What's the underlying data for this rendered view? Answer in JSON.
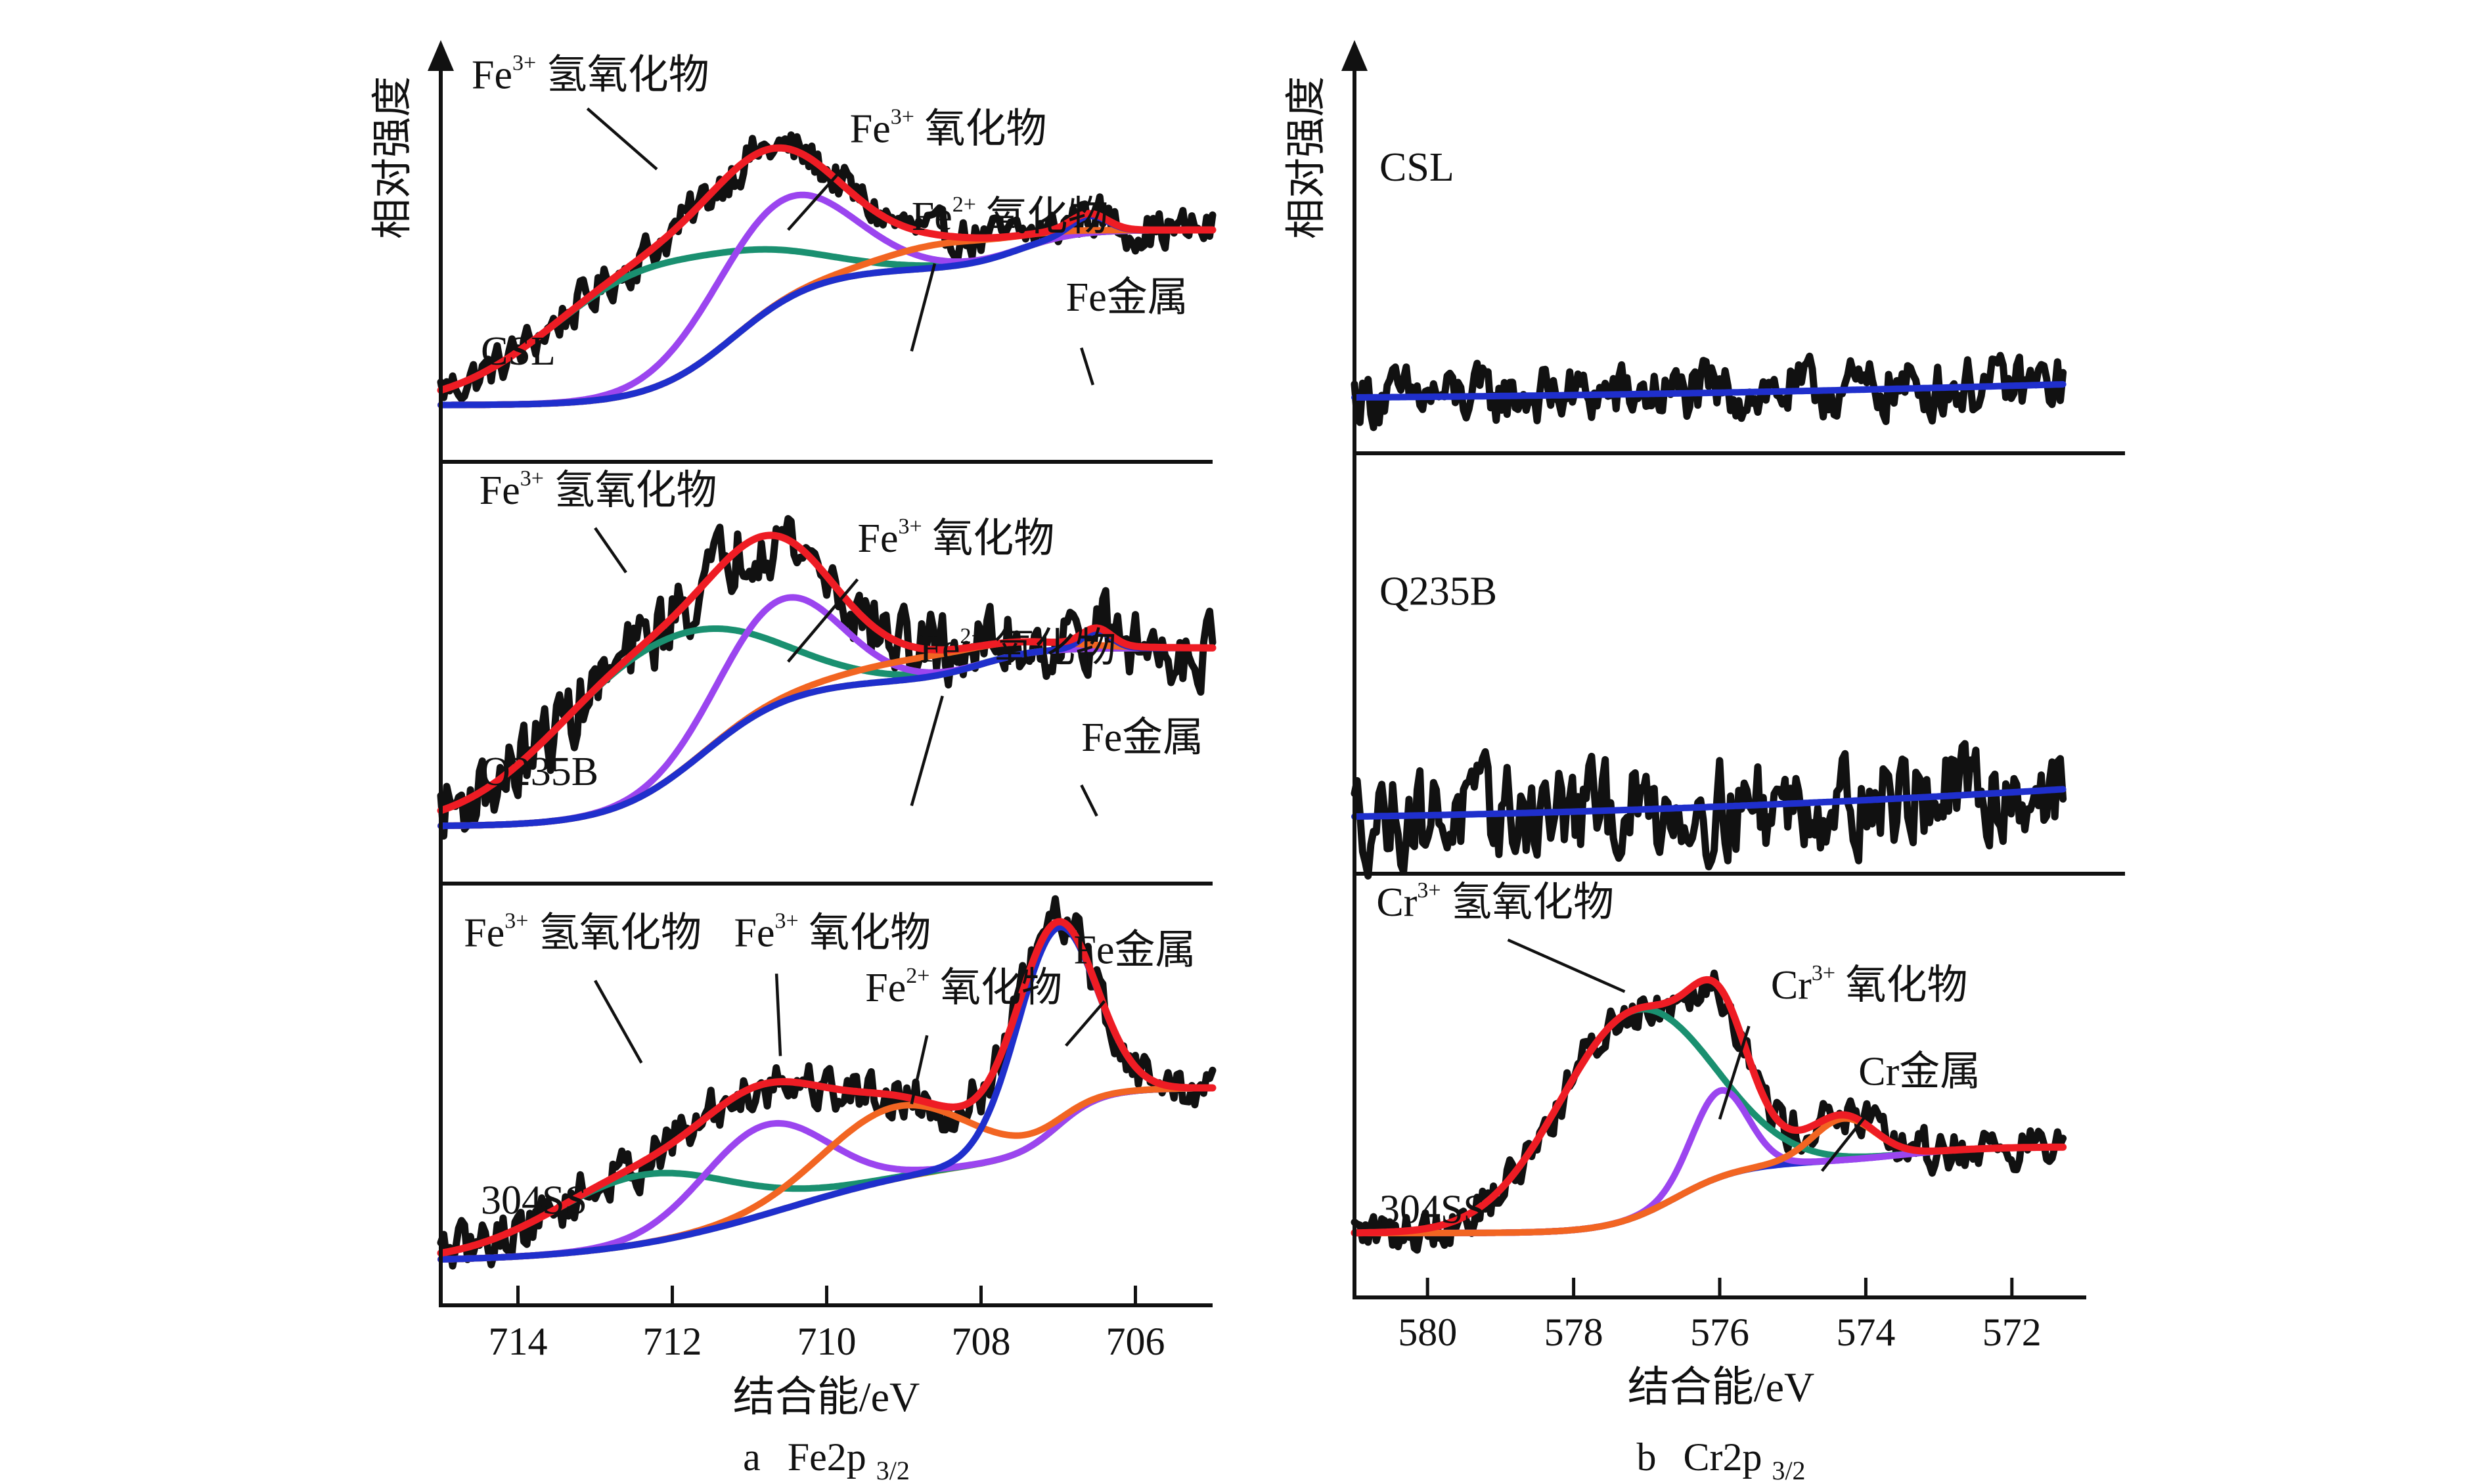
{
  "figure": {
    "y_axis_label": "相对强度",
    "x_axis_label": "结合能/eV"
  },
  "colors": {
    "raw": "#111111",
    "envelope": "#ee1c24",
    "hydroxide": "#1a9070",
    "oxide3": "#9b45ef",
    "oxide2": "#f26522",
    "metal": "#1f2fcc",
    "background": "#cc9010"
  },
  "chart_data": [
    {
      "id": "fe",
      "type": "line",
      "title": "",
      "caption": {
        "prefix": "a",
        "main": "Fe2p",
        "sub": "3/2"
      },
      "xlabel": "结合能/eV",
      "ylabel": "相对强度",
      "xlim": [
        715,
        705
      ],
      "xticks": [
        714,
        712,
        710,
        708,
        706
      ],
      "ylim": [
        0,
        1
      ],
      "grid": false,
      "panels": [
        {
          "sample": "CSL",
          "background": {
            "start": 0.62,
            "end": 0.1,
            "steps": [
              {
                "center": 711.2,
                "width": 1.2,
                "frac": 0.78
              },
              {
                "center": 707.5,
                "width": 0.8,
                "frac": 0.22
              }
            ]
          },
          "components": [
            {
              "name": "Fe³⁺ 氢氧化物",
              "key": "hydroxide",
              "center": 712.3,
              "fwhm": 3.1,
              "height": 0.36
            },
            {
              "name": "Fe³⁺ 氧化物",
              "key": "oxide3",
              "center": 710.6,
              "fwhm": 2.1,
              "height": 0.3
            },
            {
              "name": "Fe²⁺ 氧化物",
              "key": "oxide2",
              "center": 708.4,
              "fwhm": 2.0,
              "height": 0.07
            },
            {
              "name": "Fe金属",
              "key": "metal",
              "center": 706.6,
              "fwhm": 0.55,
              "height": 0.05
            }
          ],
          "noise": 0.035,
          "labels": [
            {
              "main": "Fe",
              "sup": "3+",
              "rest": " 氢氧化物",
              "x": 714.6,
              "y": 1.04,
              "line": [
                713.1,
                0.98,
                712.2,
                0.8
              ]
            },
            {
              "main": "Fe",
              "sup": "3+",
              "rest": " 氧化物",
              "x": 709.7,
              "y": 0.88,
              "line": [
                709.8,
                0.8,
                710.5,
                0.62
              ]
            },
            {
              "main": "Fe",
              "sup": "2+",
              "rest": " 氧化物",
              "x": 708.9,
              "y": 0.62,
              "line": [
                708.6,
                0.52,
                708.9,
                0.26
              ]
            },
            {
              "main": "Fe",
              "rest": "金属",
              "x": 706.9,
              "y": 0.38,
              "line": [
                706.7,
                0.27,
                706.55,
                0.16
              ]
            }
          ]
        },
        {
          "sample": "Q235B",
          "background": {
            "start": 0.62,
            "end": 0.1,
            "steps": [
              {
                "center": 711.6,
                "width": 1.3,
                "frac": 0.82
              },
              {
                "center": 708.0,
                "width": 0.8,
                "frac": 0.18
              }
            ]
          },
          "components": [
            {
              "name": "Fe³⁺ 氢氧化物",
              "key": "hydroxide",
              "center": 712.3,
              "fwhm": 3.0,
              "height": 0.42
            },
            {
              "name": "Fe³⁺ 氧化物",
              "key": "oxide3",
              "center": 710.6,
              "fwhm": 1.8,
              "height": 0.3
            },
            {
              "name": "Fe²⁺ 氧化物",
              "key": "oxide2",
              "center": 708.6,
              "fwhm": 2.6,
              "height": 0.06
            },
            {
              "name": "Fe金属",
              "key": "metal",
              "center": 706.5,
              "fwhm": 0.45,
              "height": 0.05
            }
          ],
          "noise": 0.06,
          "labels": [
            {
              "main": "Fe",
              "sup": "3+",
              "rest": " 氢氧化物",
              "x": 714.5,
              "y": 1.04,
              "line": [
                713.0,
                0.97,
                712.6,
                0.84
              ]
            },
            {
              "main": "Fe",
              "sup": "3+",
              "rest": " 氧化物",
              "x": 709.6,
              "y": 0.9,
              "line": [
                709.6,
                0.82,
                710.5,
                0.58
              ]
            },
            {
              "main": "Fe",
              "sup": "2+",
              "rest": " 氧化物",
              "x": 708.8,
              "y": 0.58,
              "line": [
                708.5,
                0.48,
                708.9,
                0.16
              ]
            },
            {
              "main": "Fe",
              "rest": "金属",
              "x": 706.7,
              "y": 0.32,
              "line": [
                706.7,
                0.22,
                706.5,
                0.13
              ]
            }
          ]
        },
        {
          "sample": "304SS",
          "background": {
            "start": 0.57,
            "end": 0.06,
            "steps": [
              {
                "center": 710.5,
                "width": 2.6,
                "frac": 0.62
              },
              {
                "center": 707.0,
                "width": 0.6,
                "frac": 0.38
              }
            ]
          },
          "components": [
            {
              "name": "Fe³⁺ 氢氧化物",
              "key": "hydroxide",
              "center": 712.4,
              "fwhm": 2.8,
              "height": 0.2
            },
            {
              "name": "Fe³⁺ 氧化物",
              "key": "oxide3",
              "center": 710.8,
              "fwhm": 1.9,
              "height": 0.26
            },
            {
              "name": "Fe²⁺ 氧化物",
              "key": "oxide2",
              "center": 709.1,
              "fwhm": 2.2,
              "height": 0.21
            },
            {
              "name": "Fe金属",
              "key": "metal",
              "center": 707.05,
              "fwhm": 1.2,
              "height": 0.58
            }
          ],
          "noise": 0.04,
          "labels": [
            {
              "main": "Fe",
              "sup": "3+",
              "rest": " 氢氧化物",
              "x": 714.7,
              "y": 0.98,
              "line": [
                713.0,
                0.88,
                712.4,
                0.64
              ]
            },
            {
              "main": "Fe",
              "sup": "3+",
              "rest": " 氧化物",
              "x": 711.2,
              "y": 0.98,
              "line": [
                710.65,
                0.9,
                710.6,
                0.66
              ]
            },
            {
              "main": "Fe",
              "sup": "2+",
              "rest": " 氧化物",
              "x": 709.5,
              "y": 0.82,
              "line": [
                708.7,
                0.72,
                708.9,
                0.52
              ]
            },
            {
              "main": "Fe",
              "rest": "金属",
              "x": 706.8,
              "y": 0.93,
              "line": [
                706.4,
                0.82,
                706.9,
                0.69
              ]
            }
          ]
        }
      ]
    },
    {
      "id": "cr",
      "type": "line",
      "title": "",
      "caption": {
        "prefix": "b",
        "main": "Cr2p",
        "sub": "3/2"
      },
      "xlabel": "结合能/eV",
      "ylabel": "相对强度",
      "xlim": [
        581,
        571
      ],
      "xticks": [
        580,
        578,
        576,
        574,
        572
      ],
      "ylim": [
        0,
        1
      ],
      "grid": false,
      "panels": [
        {
          "sample": "CSL",
          "background": {
            "start": 0.1,
            "end": 0.14,
            "steps": []
          },
          "components": [],
          "noise": 0.05,
          "labels": []
        },
        {
          "sample": "Q235B",
          "background": {
            "start": 0.1,
            "end": 0.18,
            "steps": []
          },
          "components": [],
          "noise": 0.08,
          "labels": []
        },
        {
          "sample": "304SS",
          "background": {
            "start": 0.37,
            "end": 0.12,
            "steps": [
              {
                "center": 576.6,
                "width": 1.0,
                "frac": 0.82
              },
              {
                "center": 573.5,
                "width": 1.2,
                "frac": 0.18
              }
            ]
          },
          "components": [
            {
              "name": "Cr³⁺ 氢氧化物",
              "key": "hydroxide",
              "center": 577.2,
              "fwhm": 2.4,
              "height": 0.6
            },
            {
              "name": "Cr³⁺ 氧化物",
              "key": "oxide3",
              "center": 576.0,
              "fwhm": 0.9,
              "height": 0.25
            },
            {
              "name": "Cr金属",
              "key": "oxide2",
              "center": 574.3,
              "fwhm": 1.0,
              "height": 0.12
            }
          ],
          "noise": 0.035,
          "labels": [
            {
              "main": "Cr",
              "sup": "3+",
              "rest": " 氢氧化物",
              "x": 580.7,
              "y": 1.04,
              "line": [
                578.9,
                0.97,
                577.3,
                0.82
              ]
            },
            {
              "main": "Cr",
              "sup": "3+",
              "rest": " 氧化物",
              "x": 575.3,
              "y": 0.8,
              "line": [
                575.6,
                0.72,
                576.0,
                0.45
              ]
            },
            {
              "main": "Cr",
              "rest": "金属",
              "x": 574.1,
              "y": 0.55,
              "line": [
                574.0,
                0.46,
                574.6,
                0.3
              ]
            }
          ]
        }
      ]
    }
  ]
}
